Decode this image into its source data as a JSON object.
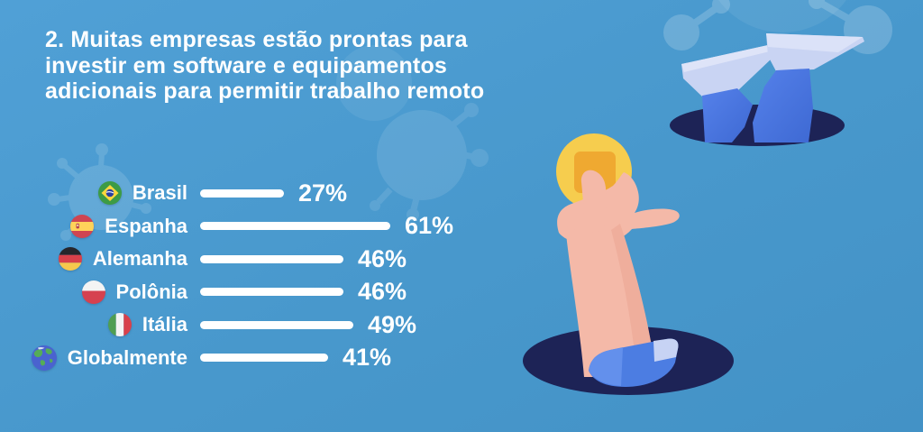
{
  "title": {
    "full": "2. Muitas empresas estão prontas para investir em software e equipamentos adicionais para permitir trabalho remoto",
    "lines": [
      "2. Muitas empresas estão prontas para",
      "investir em software e equipamentos",
      "adicionais para permitir trabalho remoto"
    ]
  },
  "chart_data": {
    "type": "bar",
    "orientation": "horizontal",
    "value_unit": "%",
    "value_range": [
      0,
      100
    ],
    "grid": false,
    "legend": false,
    "categories": [
      "Brasil",
      "Espanha",
      "Alemanha",
      "Polônia",
      "Itália",
      "Globalmente"
    ],
    "values": [
      27,
      61,
      46,
      46,
      49,
      41
    ],
    "rows": [
      {
        "label": "Brasil",
        "value": 27,
        "value_label": "27%",
        "icon": "brazil-flag-icon"
      },
      {
        "label": "Espanha",
        "value": 61,
        "value_label": "61%",
        "icon": "spain-flag-icon"
      },
      {
        "label": "Alemanha",
        "value": 46,
        "value_label": "46%",
        "icon": "germany-flag-icon"
      },
      {
        "label": "Polônia",
        "value": 46,
        "value_label": "46%",
        "icon": "poland-flag-icon"
      },
      {
        "label": "Itália",
        "value": 49,
        "value_label": "49%",
        "icon": "italy-flag-icon"
      },
      {
        "label": "Globalmente",
        "value": 41,
        "value_label": "41%",
        "icon": "globe-icon"
      }
    ],
    "bar_color": "#ffffff"
  },
  "colors": {
    "background_top": "#50a0d6",
    "background_bottom": "#4392c6",
    "text": "#ffffff",
    "hole_navy": "#1d2356",
    "leg_blue": "#4a76e2",
    "leg_light_blue": "#c9d4f3",
    "skin": "#f4b9a8",
    "sleeve_blue": "#4c7de2",
    "coin_yellow": "#f6cd4e",
    "coin_inner_orange": "#efa931"
  }
}
